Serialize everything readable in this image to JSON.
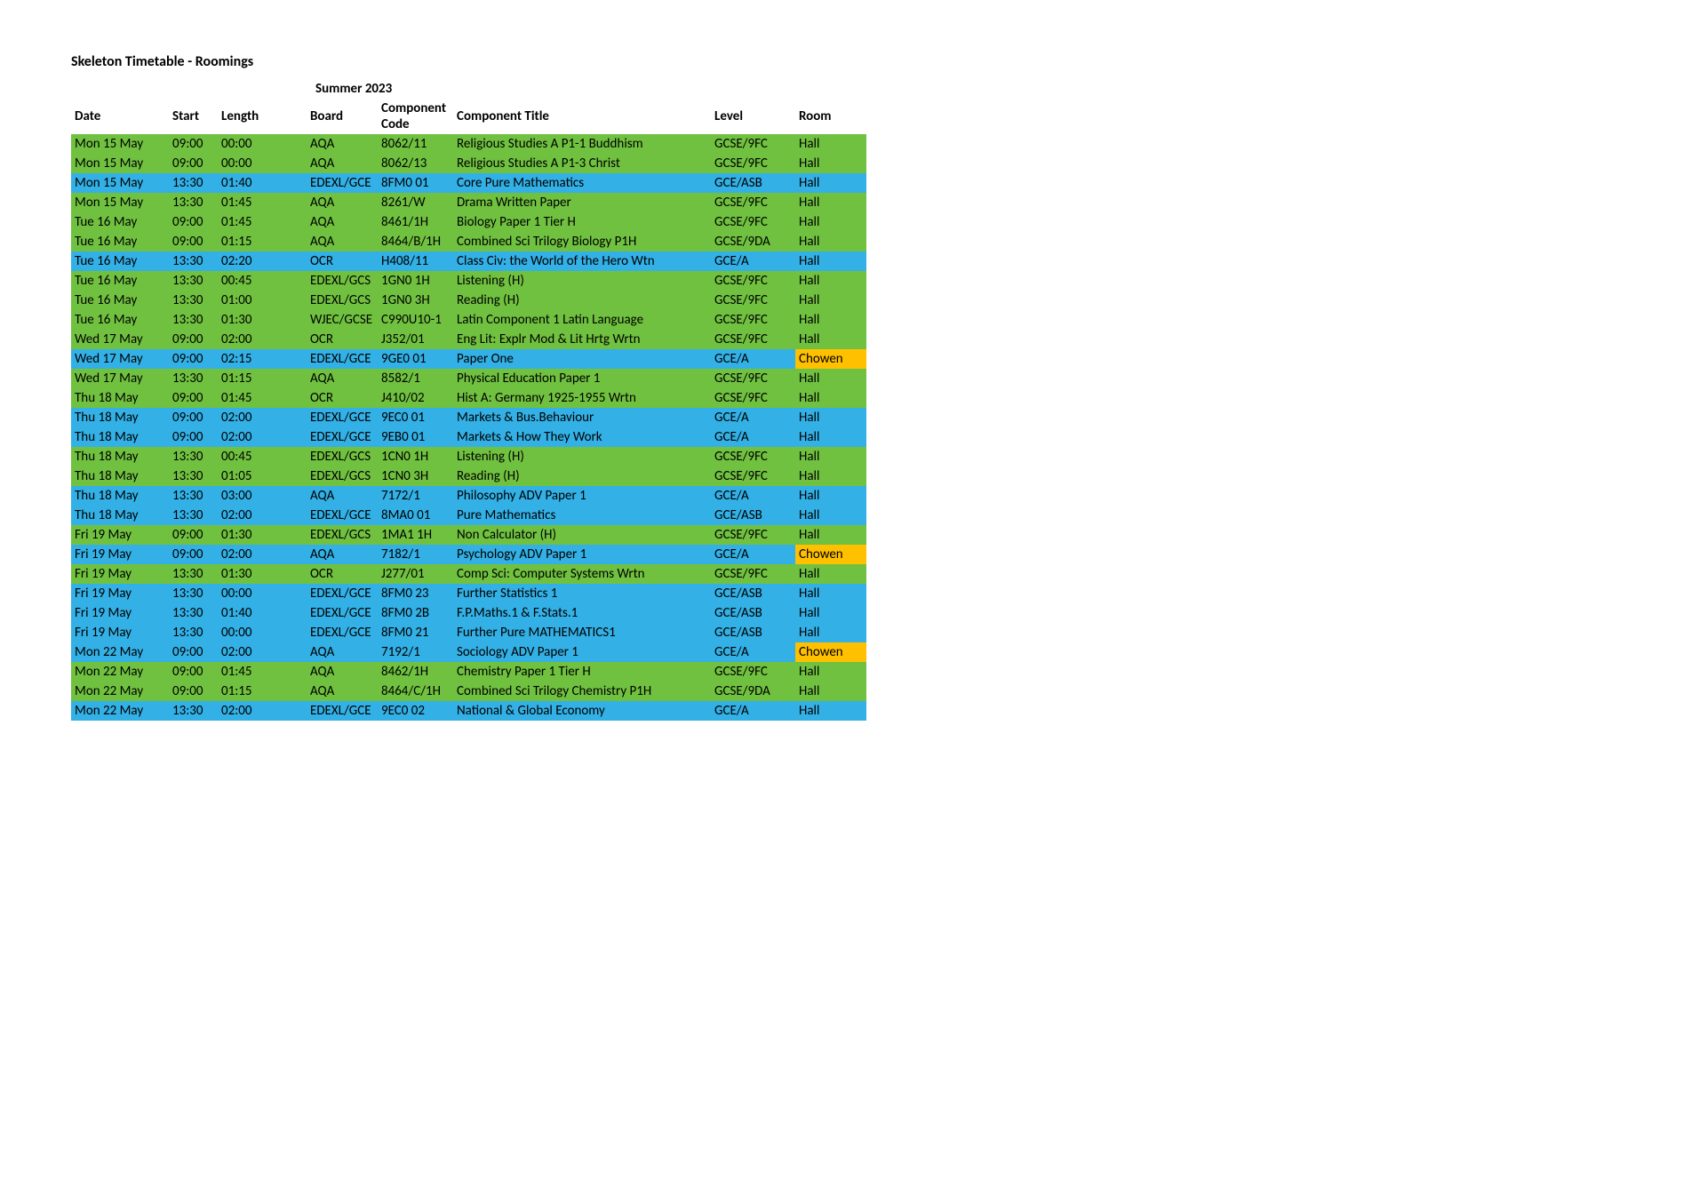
{
  "page_title": "Skeleton Timetable - Roomings",
  "period": "Summer 2023",
  "colors": {
    "green": "#70c140",
    "blue": "#33b0e5",
    "orange": "#ffc000",
    "text": "#000000",
    "background": "#ffffff"
  },
  "headers": {
    "date": "Date",
    "start": "Start",
    "length": "Length",
    "board": "Board",
    "code": "Component Code",
    "title": "Component Title",
    "level": "Level",
    "room": "Room"
  },
  "rows": [
    {
      "date": "Mon 15 May",
      "start": "09:00",
      "length": "00:00",
      "board": "AQA",
      "code": "8062/11",
      "title": "Religious Studies A P1-1 Buddhism",
      "level": "GCSE/9FC",
      "room": "Hall",
      "row_color": "green",
      "room_color": "green"
    },
    {
      "date": "Mon 15 May",
      "start": "09:00",
      "length": "00:00",
      "board": "AQA",
      "code": "8062/13",
      "title": "Religious Studies A P1-3 Christ",
      "level": "GCSE/9FC",
      "room": "Hall",
      "row_color": "green",
      "room_color": "green"
    },
    {
      "date": "Mon 15 May",
      "start": "13:30",
      "length": "01:40",
      "board": "EDEXL/GCE",
      "code": "8FM0 01",
      "title": "Core Pure Mathematics",
      "level": "GCE/ASB",
      "room": "Hall",
      "row_color": "blue",
      "room_color": "blue"
    },
    {
      "date": "Mon 15 May",
      "start": "13:30",
      "length": "01:45",
      "board": "AQA",
      "code": "8261/W",
      "title": "Drama Written Paper",
      "level": "GCSE/9FC",
      "room": "Hall",
      "row_color": "green",
      "room_color": "green"
    },
    {
      "date": "Tue 16 May",
      "start": "09:00",
      "length": "01:45",
      "board": "AQA",
      "code": "8461/1H",
      "title": "Biology Paper 1 Tier H",
      "level": "GCSE/9FC",
      "room": "Hall",
      "row_color": "green",
      "room_color": "green"
    },
    {
      "date": "Tue 16 May",
      "start": "09:00",
      "length": "01:15",
      "board": "AQA",
      "code": "8464/B/1H",
      "title": "Combined Sci Trilogy Biology P1H",
      "level": "GCSE/9DA",
      "room": "Hall",
      "row_color": "green",
      "room_color": "green"
    },
    {
      "date": "Tue 16 May",
      "start": "13:30",
      "length": "02:20",
      "board": "OCR",
      "code": "H408/11",
      "title": "Class Civ: the World of the Hero Wtn",
      "level": "GCE/A",
      "room": "Hall",
      "row_color": "blue",
      "room_color": "blue"
    },
    {
      "date": "Tue 16 May",
      "start": "13:30",
      "length": "00:45",
      "board": "EDEXL/GCS",
      "code": "1GN0 1H",
      "title": "Listening (H)",
      "level": "GCSE/9FC",
      "room": "Hall",
      "row_color": "green",
      "room_color": "green"
    },
    {
      "date": "Tue 16 May",
      "start": "13:30",
      "length": "01:00",
      "board": "EDEXL/GCS",
      "code": "1GN0 3H",
      "title": "Reading (H)",
      "level": "GCSE/9FC",
      "room": "Hall",
      "row_color": "green",
      "room_color": "green"
    },
    {
      "date": "Tue 16 May",
      "start": "13:30",
      "length": "01:30",
      "board": "WJEC/GCSE",
      "code": "C990U10-1",
      "title": "Latin Component 1 Latin Language",
      "level": "GCSE/9FC",
      "room": "Hall",
      "row_color": "green",
      "room_color": "green"
    },
    {
      "date": "Wed 17 May",
      "start": "09:00",
      "length": "02:00",
      "board": "OCR",
      "code": "J352/01",
      "title": "Eng Lit: Explr Mod & Lit Hrtg Wrtn",
      "level": "GCSE/9FC",
      "room": "Hall",
      "row_color": "green",
      "room_color": "green"
    },
    {
      "date": "Wed 17 May",
      "start": "09:00",
      "length": "02:15",
      "board": "EDEXL/GCE",
      "code": "9GE0 01",
      "title": "Paper One",
      "level": "GCE/A",
      "room": "Chowen",
      "row_color": "blue",
      "room_color": "orange"
    },
    {
      "date": "Wed 17 May",
      "start": "13:30",
      "length": "01:15",
      "board": "AQA",
      "code": "8582/1",
      "title": "Physical Education Paper 1",
      "level": "GCSE/9FC",
      "room": "Hall",
      "row_color": "green",
      "room_color": "green"
    },
    {
      "date": "Thu 18 May",
      "start": "09:00",
      "length": "01:45",
      "board": "OCR",
      "code": "J410/02",
      "title": "Hist A: Germany 1925-1955 Wrtn",
      "level": "GCSE/9FC",
      "room": "Hall",
      "row_color": "green",
      "room_color": "green"
    },
    {
      "date": "Thu 18 May",
      "start": "09:00",
      "length": "02:00",
      "board": "EDEXL/GCE",
      "code": "9EC0 01",
      "title": "Markets & Bus.Behaviour",
      "level": "GCE/A",
      "room": "Hall",
      "row_color": "blue",
      "room_color": "blue"
    },
    {
      "date": "Thu 18 May",
      "start": "09:00",
      "length": "02:00",
      "board": "EDEXL/GCE",
      "code": "9EB0 01",
      "title": "Markets & How They Work",
      "level": "GCE/A",
      "room": "Hall",
      "row_color": "blue",
      "room_color": "blue"
    },
    {
      "date": "Thu 18 May",
      "start": "13:30",
      "length": "00:45",
      "board": "EDEXL/GCS",
      "code": "1CN0 1H",
      "title": "Listening (H)",
      "level": "GCSE/9FC",
      "room": "Hall",
      "row_color": "green",
      "room_color": "green"
    },
    {
      "date": "Thu 18 May",
      "start": "13:30",
      "length": "01:05",
      "board": "EDEXL/GCS",
      "code": "1CN0 3H",
      "title": "Reading (H)",
      "level": "GCSE/9FC",
      "room": "Hall",
      "row_color": "green",
      "room_color": "green"
    },
    {
      "date": "Thu 18 May",
      "start": "13:30",
      "length": "03:00",
      "board": "AQA",
      "code": "7172/1",
      "title": "Philosophy ADV Paper 1",
      "level": "GCE/A",
      "room": "Hall",
      "row_color": "blue",
      "room_color": "blue"
    },
    {
      "date": "Thu 18 May",
      "start": "13:30",
      "length": "02:00",
      "board": "EDEXL/GCE",
      "code": "8MA0 01",
      "title": "Pure Mathematics",
      "level": "GCE/ASB",
      "room": "Hall",
      "row_color": "blue",
      "room_color": "blue"
    },
    {
      "date": "Fri 19 May",
      "start": "09:00",
      "length": "01:30",
      "board": "EDEXL/GCS",
      "code": "1MA1 1H",
      "title": "Non Calculator (H)",
      "level": "GCSE/9FC",
      "room": "Hall",
      "row_color": "green",
      "room_color": "green"
    },
    {
      "date": "Fri 19 May",
      "start": "09:00",
      "length": "02:00",
      "board": "AQA",
      "code": "7182/1",
      "title": "Psychology ADV Paper 1",
      "level": "GCE/A",
      "room": "Chowen",
      "row_color": "blue",
      "room_color": "orange"
    },
    {
      "date": "Fri 19 May",
      "start": "13:30",
      "length": "01:30",
      "board": "OCR",
      "code": "J277/01",
      "title": "Comp Sci: Computer Systems Wrtn",
      "level": "GCSE/9FC",
      "room": "Hall",
      "row_color": "green",
      "room_color": "green"
    },
    {
      "date": "Fri 19 May",
      "start": "13:30",
      "length": "00:00",
      "board": "EDEXL/GCE",
      "code": "8FM0 23",
      "title": "Further Statistics 1",
      "level": "GCE/ASB",
      "room": "Hall",
      "row_color": "blue",
      "room_color": "blue"
    },
    {
      "date": "Fri 19 May",
      "start": "13:30",
      "length": "01:40",
      "board": "EDEXL/GCE",
      "code": "8FM0 2B",
      "title": "F.P.Maths.1 & F.Stats.1",
      "level": "GCE/ASB",
      "room": "Hall",
      "row_color": "blue",
      "room_color": "blue"
    },
    {
      "date": "Fri 19 May",
      "start": "13:30",
      "length": "00:00",
      "board": "EDEXL/GCE",
      "code": "8FM0 21",
      "title": "Further Pure MATHEMATICS1",
      "level": "GCE/ASB",
      "room": "Hall",
      "row_color": "blue",
      "room_color": "blue"
    },
    {
      "date": "Mon 22 May",
      "start": "09:00",
      "length": "02:00",
      "board": "AQA",
      "code": "7192/1",
      "title": "Sociology ADV Paper 1",
      "level": "GCE/A",
      "room": "Chowen",
      "row_color": "blue",
      "room_color": "orange"
    },
    {
      "date": "Mon 22 May",
      "start": "09:00",
      "length": "01:45",
      "board": "AQA",
      "code": "8462/1H",
      "title": "Chemistry Paper 1 Tier H",
      "level": "GCSE/9FC",
      "room": "Hall",
      "row_color": "green",
      "room_color": "green"
    },
    {
      "date": "Mon 22 May",
      "start": "09:00",
      "length": "01:15",
      "board": "AQA",
      "code": "8464/C/1H",
      "title": "Combined Sci Trilogy Chemistry P1H",
      "level": "GCSE/9DA",
      "room": "Hall",
      "row_color": "green",
      "room_color": "green"
    },
    {
      "date": "Mon 22 May",
      "start": "13:30",
      "length": "02:00",
      "board": "EDEXL/GCE",
      "code": "9EC0 02",
      "title": "National & Global Economy",
      "level": "GCE/A",
      "room": "Hall",
      "row_color": "blue",
      "room_color": "blue"
    }
  ]
}
